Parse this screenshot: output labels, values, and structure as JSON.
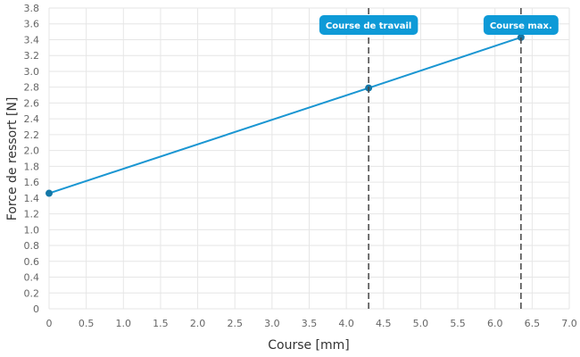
{
  "chart_data": {
    "type": "line",
    "title": "",
    "xlabel": "Course [mm]",
    "ylabel": "Force de ressort [N]",
    "xlim": [
      0,
      7.0
    ],
    "ylim": [
      0,
      3.8
    ],
    "x_ticks": [
      "0",
      "0.5",
      "1.0",
      "1.5",
      "2.0",
      "2.5",
      "3.0",
      "3.5",
      "4.0",
      "4.5",
      "5.0",
      "5.5",
      "6.0",
      "6.5",
      "7.0"
    ],
    "y_ticks": [
      "0",
      "0.2",
      "0.4",
      "0.6",
      "0.8",
      "1.0",
      "1.2",
      "1.4",
      "1.6",
      "1.8",
      "2.0",
      "2.2",
      "2.4",
      "2.6",
      "2.8",
      "3.0",
      "3.2",
      "3.4",
      "3.6",
      "3.8"
    ],
    "grid": true,
    "series": [
      {
        "color": "#1a96d2",
        "points": [
          {
            "x": 0,
            "y": 1.46
          },
          {
            "x": 4.3,
            "y": 2.79
          },
          {
            "x": 6.35,
            "y": 3.43
          }
        ]
      }
    ],
    "markers": [
      {
        "label": "Course de travail",
        "x": 4.3
      },
      {
        "label": "Course max.",
        "x": 6.35
      }
    ],
    "colors": {
      "grid": "#e6e6e6",
      "line": "#1a96d2",
      "point": "#1478a8",
      "marker_label_bg": "#0e9ad7",
      "marker_line": "#444444"
    }
  }
}
